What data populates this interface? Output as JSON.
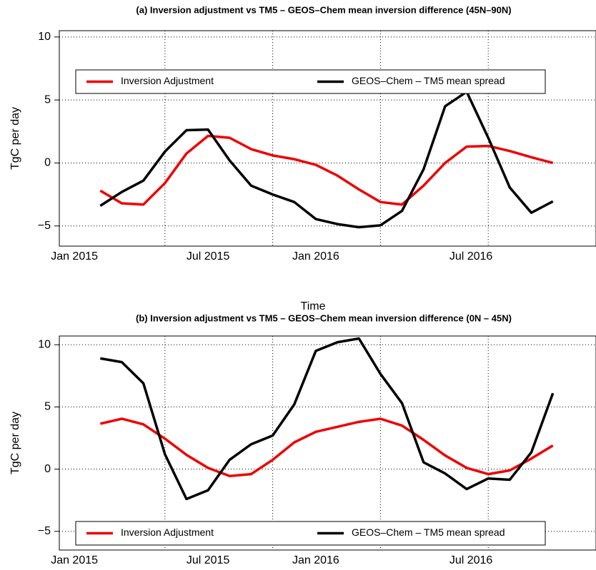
{
  "chart_data": [
    {
      "type": "line",
      "title": "(a)  Inversion adjustment vs TM5 – GEOS–Chem mean inversion difference (45N–90N)",
      "xlabel": "Time",
      "ylabel": "TgC per day",
      "x": [
        0,
        1,
        2,
        3,
        4,
        5,
        6,
        7,
        8,
        9,
        10,
        11,
        12,
        13,
        14,
        15,
        16,
        17,
        18,
        19,
        20,
        21
      ],
      "xlim": [
        -1.9,
        23
      ],
      "xticks": [
        {
          "value": -1.2,
          "label": "Jan 2015"
        },
        {
          "value": 5,
          "label": "Jul 2015"
        },
        {
          "value": 10,
          "label": "Jan 2016"
        },
        {
          "value": 17.2,
          "label": "Jul 2016"
        }
      ],
      "xgrid": [
        3,
        8,
        13,
        18
      ],
      "ylim": [
        -6.6,
        10.5
      ],
      "yticks": [
        {
          "value": -5,
          "label": "−5"
        },
        0,
        5,
        10
      ],
      "grid": true,
      "legend": "top",
      "series": [
        {
          "name": "Inversion Adjustment",
          "color": "#ee0000",
          "values": [
            -2.2,
            -3.2,
            -3.3,
            -1.6,
            0.75,
            2.15,
            2.0,
            1.1,
            0.6,
            0.3,
            -0.15,
            -1.0,
            -2.1,
            -3.1,
            -3.3,
            -1.8,
            0,
            1.3,
            1.35,
            0.95,
            0.45,
            0
          ]
        },
        {
          "name": "GEOS–Chem – TM5 mean spread",
          "color": "#000000",
          "values": [
            -3.4,
            -2.3,
            -1.4,
            0.9,
            2.6,
            2.65,
            0.2,
            -1.8,
            -2.5,
            -3.1,
            -4.45,
            -4.85,
            -5.1,
            -4.95,
            -3.8,
            -0.5,
            4.5,
            5.65,
            2.0,
            -1.95,
            -3.95,
            -3.05
          ]
        }
      ]
    },
    {
      "type": "line",
      "title": "(b)  Inversion adjustment vs TM5 – GEOS–Chem mean inversion difference (0N – 45N)",
      "ylabel": "TgC per day",
      "x": [
        0,
        1,
        2,
        3,
        4,
        5,
        6,
        7,
        8,
        9,
        10,
        11,
        12,
        13,
        14,
        15,
        16,
        17,
        18,
        19,
        20,
        21
      ],
      "xlim": [
        -1.9,
        23
      ],
      "xticks": [
        {
          "value": -1.2,
          "label": "Jan 2015"
        },
        {
          "value": 5,
          "label": "Jul 2015"
        },
        {
          "value": 10,
          "label": "Jan 2016"
        },
        {
          "value": 17.2,
          "label": "Jul 2016"
        }
      ],
      "xgrid": [
        3,
        8,
        13,
        18
      ],
      "ylim": [
        -6.5,
        10.7
      ],
      "yticks": [
        {
          "value": -5,
          "label": "−5"
        },
        0,
        5,
        10
      ],
      "grid": true,
      "legend": "bottom",
      "series": [
        {
          "name": "Inversion Adjustment",
          "color": "#ee0000",
          "values": [
            3.65,
            4.05,
            3.6,
            2.45,
            1.15,
            0.1,
            -0.55,
            -0.4,
            0.75,
            2.15,
            3.0,
            3.4,
            3.8,
            4.05,
            3.5,
            2.35,
            1.1,
            0.1,
            -0.4,
            -0.1,
            0.85,
            1.9
          ]
        },
        {
          "name": "GEOS–Chem – TM5 mean spread",
          "color": "#000000",
          "values": [
            8.9,
            8.6,
            6.9,
            1.2,
            -2.4,
            -1.7,
            0.75,
            2.0,
            2.7,
            5.2,
            9.5,
            10.2,
            10.5,
            7.65,
            5.3,
            0.55,
            -0.35,
            -1.6,
            -0.75,
            -0.85,
            1.35,
            6.1
          ]
        }
      ]
    }
  ]
}
